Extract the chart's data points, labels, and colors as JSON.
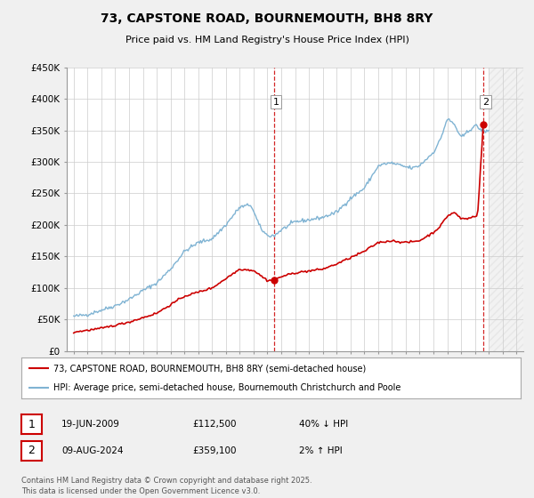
{
  "title": "73, CAPSTONE ROAD, BOURNEMOUTH, BH8 8RY",
  "subtitle": "Price paid vs. HM Land Registry's House Price Index (HPI)",
  "bg_color": "#f0f0f0",
  "plot_bg_color": "#ffffff",
  "hpi_color": "#7fb3d3",
  "property_color": "#cc0000",
  "vline_color": "#cc0000",
  "marker1_x": 2009.46,
  "marker2_x": 2024.6,
  "annotation1": {
    "date": "19-JUN-2009",
    "price": "£112,500",
    "pct": "40% ↓ HPI"
  },
  "annotation2": {
    "date": "09-AUG-2024",
    "price": "£359,100",
    "pct": "2% ↑ HPI"
  },
  "legend_line1": "73, CAPSTONE ROAD, BOURNEMOUTH, BH8 8RY (semi-detached house)",
  "legend_line2": "HPI: Average price, semi-detached house, Bournemouth Christchurch and Poole",
  "footer": "Contains HM Land Registry data © Crown copyright and database right 2025.\nThis data is licensed under the Open Government Licence v3.0.",
  "xlim": [
    1994.5,
    2027.5
  ],
  "ylim": [
    0,
    450000
  ],
  "yticks": [
    0,
    50000,
    100000,
    150000,
    200000,
    250000,
    300000,
    350000,
    400000,
    450000
  ],
  "ytick_labels": [
    "£0",
    "£50K",
    "£100K",
    "£150K",
    "£200K",
    "£250K",
    "£300K",
    "£350K",
    "£400K",
    "£450K"
  ],
  "xticks": [
    1995,
    1996,
    1997,
    1998,
    1999,
    2000,
    2001,
    2002,
    2003,
    2004,
    2005,
    2006,
    2007,
    2008,
    2009,
    2010,
    2011,
    2012,
    2013,
    2014,
    2015,
    2016,
    2017,
    2018,
    2019,
    2020,
    2021,
    2022,
    2023,
    2024,
    2025,
    2026,
    2027
  ],
  "hatch_start": 2025.0
}
